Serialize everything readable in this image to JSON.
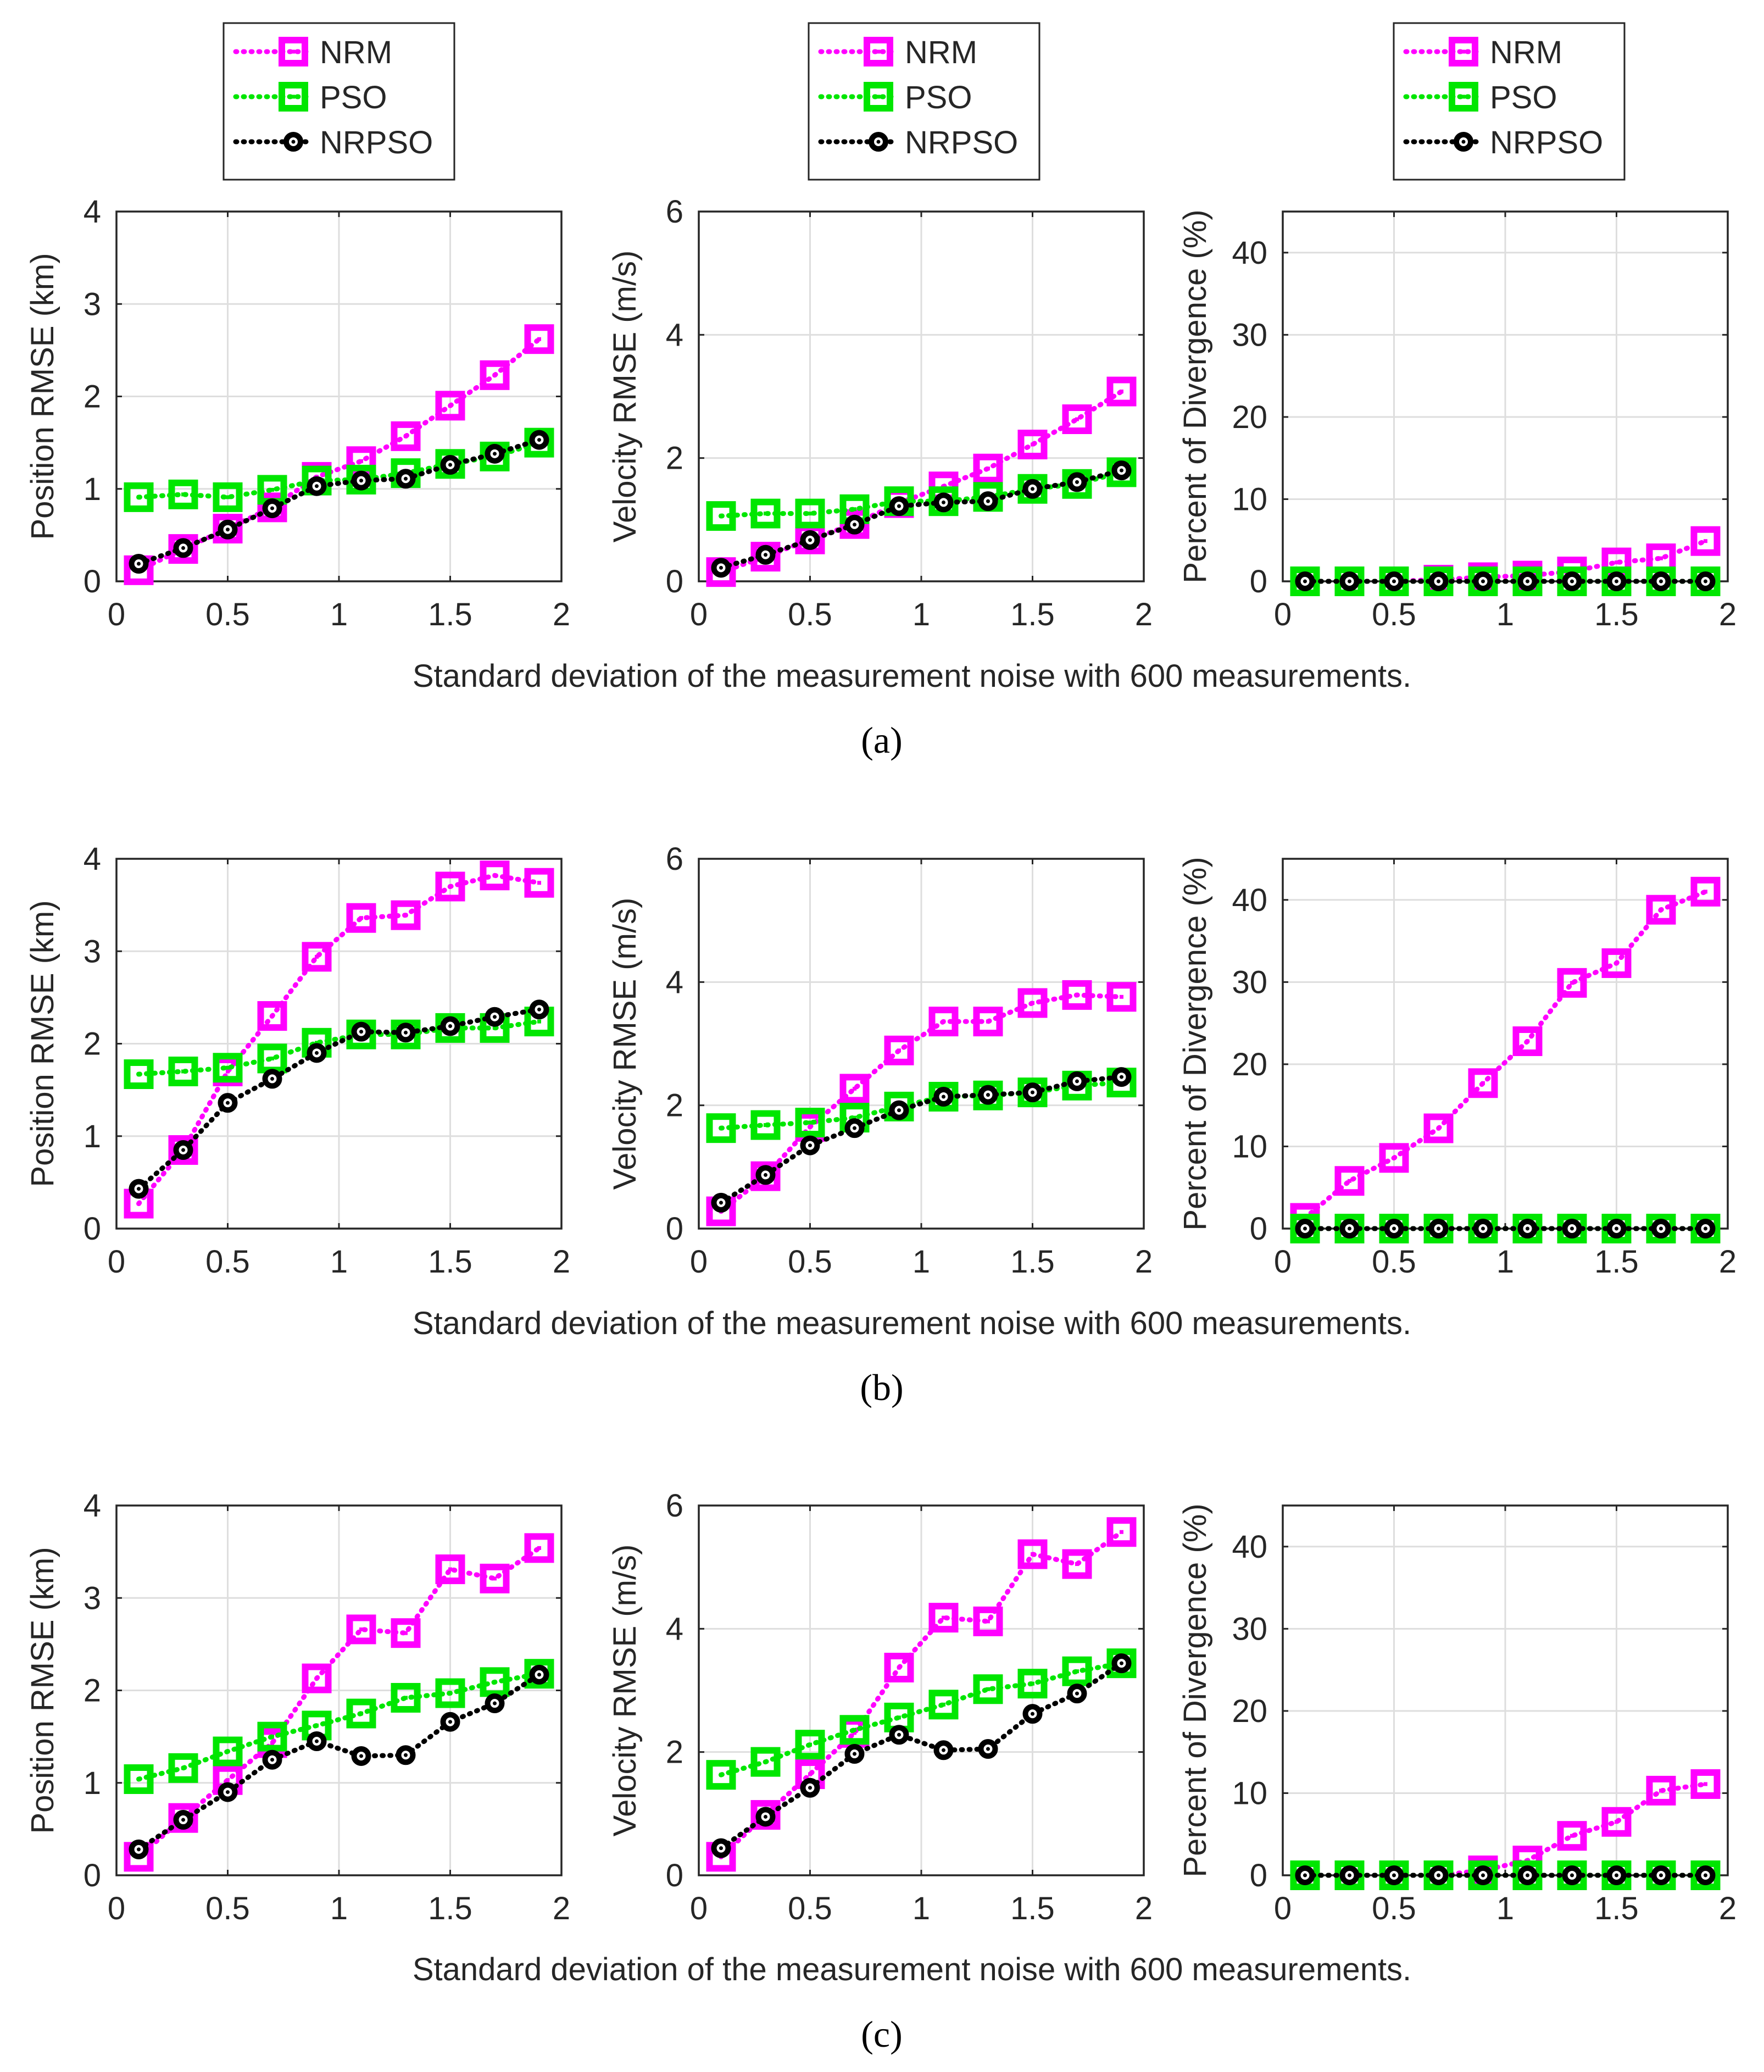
{
  "colors": {
    "NRM": "#ff00ff",
    "PSO": "#00e600",
    "NRPSO": "#000000",
    "grid": "#dedede",
    "axis": "#262626"
  },
  "legend": [
    "NRM",
    "PSO",
    "NRPSO"
  ],
  "chart_data": [
    {
      "type": "line",
      "row": "a",
      "caption": "(a)",
      "xlabel": "Standard deviation of the measurement noise with 600 measurements.",
      "x": [
        0.1,
        0.3,
        0.5,
        0.7,
        0.9,
        1.1,
        1.3,
        1.5,
        1.7,
        1.9
      ],
      "panels": [
        {
          "ylabel": "Position RMSE (km)",
          "xlim": [
            0,
            2
          ],
          "ylim": [
            0,
            4
          ],
          "xticks": [
            0,
            0.5,
            1,
            1.5,
            2
          ],
          "xtick_labels": [
            "0",
            "0.5",
            "1",
            "1.5",
            "2"
          ],
          "yticks": [
            0,
            1,
            2,
            3,
            4
          ],
          "ytick_labels": [
            "0",
            "1",
            "2",
            "3",
            "4"
          ],
          "series": [
            {
              "name": "NRM",
              "values": [
                0.12,
                0.35,
                0.57,
                0.8,
                1.13,
                1.3,
                1.57,
                1.9,
                2.23,
                2.62
              ]
            },
            {
              "name": "PSO",
              "values": [
                0.91,
                0.94,
                0.91,
                0.99,
                1.09,
                1.1,
                1.17,
                1.27,
                1.35,
                1.5
              ]
            },
            {
              "name": "NRPSO",
              "values": [
                0.19,
                0.36,
                0.56,
                0.79,
                1.03,
                1.09,
                1.11,
                1.26,
                1.38,
                1.53
              ]
            }
          ]
        },
        {
          "ylabel": "Velocity RMSE (m/s)",
          "xlim": [
            0,
            2
          ],
          "ylim": [
            0,
            6
          ],
          "xticks": [
            0,
            0.5,
            1,
            1.5,
            2
          ],
          "xtick_labels": [
            "0",
            "0.5",
            "1",
            "1.5",
            "2"
          ],
          "yticks": [
            0,
            2,
            4,
            6
          ],
          "ytick_labels": [
            "0",
            "2",
            "4",
            "6"
          ],
          "series": [
            {
              "name": "NRM",
              "values": [
                0.15,
                0.4,
                0.68,
                0.93,
                1.27,
                1.54,
                1.83,
                2.22,
                2.63,
                3.08
              ]
            },
            {
              "name": "PSO",
              "values": [
                1.06,
                1.1,
                1.1,
                1.17,
                1.3,
                1.3,
                1.37,
                1.5,
                1.58,
                1.77
              ]
            },
            {
              "name": "NRPSO",
              "values": [
                0.22,
                0.43,
                0.67,
                0.92,
                1.22,
                1.28,
                1.3,
                1.5,
                1.61,
                1.8
              ]
            }
          ]
        },
        {
          "ylabel": "Percent of Divergence (%)",
          "xlim": [
            0,
            2
          ],
          "ylim": [
            0,
            45
          ],
          "xticks": [
            0,
            0.5,
            1,
            1.5,
            2
          ],
          "xtick_labels": [
            "0",
            "0.5",
            "1",
            "1.5",
            "2"
          ],
          "yticks": [
            0,
            10,
            20,
            30,
            40
          ],
          "ytick_labels": [
            "0",
            "10",
            "20",
            "30",
            "40"
          ],
          "series": [
            {
              "name": "NRM",
              "values": [
                0,
                0,
                0,
                0.2,
                0.5,
                0.7,
                1.2,
                2.3,
                2.8,
                4.9
              ]
            },
            {
              "name": "PSO",
              "values": [
                0,
                0,
                0,
                0,
                0,
                0,
                0,
                0,
                0,
                0
              ]
            },
            {
              "name": "NRPSO",
              "values": [
                0,
                0,
                0,
                0,
                0,
                0,
                0,
                0,
                0,
                0
              ]
            }
          ]
        }
      ]
    },
    {
      "type": "line",
      "row": "b",
      "caption": "(b)",
      "xlabel": "Standard deviation of the measurement noise with 600 measurements.",
      "x": [
        0.1,
        0.3,
        0.5,
        0.7,
        0.9,
        1.1,
        1.3,
        1.5,
        1.7,
        1.9
      ],
      "panels": [
        {
          "ylabel": "Position RMSE (km)",
          "xlim": [
            0,
            2
          ],
          "ylim": [
            0,
            4
          ],
          "xticks": [
            0,
            0.5,
            1,
            1.5,
            2
          ],
          "xtick_labels": [
            "0",
            "0.5",
            "1",
            "1.5",
            "2"
          ],
          "yticks": [
            0,
            1,
            2,
            3,
            4
          ],
          "ytick_labels": [
            "0",
            "1",
            "2",
            "3",
            "4"
          ],
          "series": [
            {
              "name": "NRM",
              "values": [
                0.27,
                0.85,
                1.7,
                2.3,
                2.94,
                3.36,
                3.39,
                3.7,
                3.82,
                3.74
              ]
            },
            {
              "name": "PSO",
              "values": [
                1.67,
                1.7,
                1.74,
                1.84,
                2.01,
                2.1,
                2.1,
                2.17,
                2.17,
                2.24
              ]
            },
            {
              "name": "NRPSO",
              "values": [
                0.43,
                0.85,
                1.36,
                1.62,
                1.9,
                2.13,
                2.12,
                2.19,
                2.29,
                2.37
              ]
            }
          ]
        },
        {
          "ylabel": "Velocity RMSE (m/s)",
          "xlim": [
            0,
            2
          ],
          "ylim": [
            0,
            6
          ],
          "xticks": [
            0,
            0.5,
            1,
            1.5,
            2
          ],
          "xtick_labels": [
            "0",
            "0.5",
            "1",
            "1.5",
            "2"
          ],
          "yticks": [
            0,
            2,
            4,
            6
          ],
          "ytick_labels": [
            "0",
            "2",
            "4",
            "6"
          ],
          "series": [
            {
              "name": "NRM",
              "values": [
                0.28,
                0.85,
                1.65,
                2.27,
                2.89,
                3.36,
                3.36,
                3.66,
                3.79,
                3.76
              ]
            },
            {
              "name": "PSO",
              "values": [
                1.63,
                1.68,
                1.72,
                1.8,
                1.98,
                2.14,
                2.16,
                2.21,
                2.32,
                2.37
              ]
            },
            {
              "name": "NRPSO",
              "values": [
                0.42,
                0.87,
                1.35,
                1.63,
                1.92,
                2.14,
                2.17,
                2.21,
                2.39,
                2.46
              ]
            }
          ]
        },
        {
          "ylabel": "Percent of Divergence (%)",
          "xlim": [
            0,
            2
          ],
          "ylim": [
            0,
            45
          ],
          "xticks": [
            0,
            0.5,
            1,
            1.5,
            2
          ],
          "xtick_labels": [
            "0",
            "0.5",
            "1",
            "1.5",
            "2"
          ],
          "yticks": [
            0,
            10,
            20,
            30,
            40
          ],
          "ytick_labels": [
            "0",
            "10",
            "20",
            "30",
            "40"
          ],
          "series": [
            {
              "name": "NRM",
              "values": [
                1.3,
                5.8,
                8.6,
                12.2,
                17.7,
                22.8,
                29.9,
                32.3,
                38.8,
                41
              ]
            },
            {
              "name": "PSO",
              "values": [
                0,
                0,
                0,
                0,
                0,
                0,
                0,
                0,
                0,
                0
              ]
            },
            {
              "name": "NRPSO",
              "values": [
                0,
                0,
                0,
                0,
                0,
                0,
                0,
                0,
                0,
                0
              ]
            }
          ]
        }
      ]
    },
    {
      "type": "line",
      "row": "c",
      "caption": "(c)",
      "xlabel": "Standard deviation of the measurement noise with 600 measurements.",
      "x": [
        0.1,
        0.3,
        0.5,
        0.7,
        0.9,
        1.1,
        1.3,
        1.5,
        1.7,
        1.9
      ],
      "panels": [
        {
          "ylabel": "Position RMSE (km)",
          "xlim": [
            0,
            2
          ],
          "ylim": [
            0,
            4
          ],
          "xticks": [
            0,
            0.5,
            1,
            1.5,
            2
          ],
          "xtick_labels": [
            "0",
            "0.5",
            "1",
            "1.5",
            "2"
          ],
          "yticks": [
            0,
            1,
            2,
            3,
            4
          ],
          "ytick_labels": [
            "0",
            "1",
            "2",
            "3",
            "4"
          ],
          "series": [
            {
              "name": "NRM",
              "values": [
                0.2,
                0.62,
                1.03,
                1.43,
                2.13,
                2.66,
                2.62,
                3.31,
                3.21,
                3.54
              ]
            },
            {
              "name": "PSO",
              "values": [
                1.04,
                1.16,
                1.34,
                1.5,
                1.62,
                1.75,
                1.92,
                1.97,
                2.09,
                2.18
              ]
            },
            {
              "name": "NRPSO",
              "values": [
                0.28,
                0.6,
                0.9,
                1.25,
                1.45,
                1.29,
                1.3,
                1.66,
                1.86,
                2.17
              ]
            }
          ]
        },
        {
          "ylabel": "Velocity RMSE (m/s)",
          "xlim": [
            0,
            2
          ],
          "ylim": [
            0,
            6
          ],
          "xticks": [
            0,
            0.5,
            1,
            1.5,
            2
          ],
          "xtick_labels": [
            "0",
            "0.5",
            "1",
            "1.5",
            "2"
          ],
          "yticks": [
            0,
            2,
            4,
            6
          ],
          "ytick_labels": [
            "0",
            "2",
            "4",
            "6"
          ],
          "series": [
            {
              "name": "NRM",
              "values": [
                0.3,
                0.98,
                1.64,
                2.31,
                3.37,
                4.18,
                4.12,
                5.21,
                5.05,
                5.57
              ]
            },
            {
              "name": "PSO",
              "values": [
                1.63,
                1.84,
                2.12,
                2.36,
                2.56,
                2.77,
                3.02,
                3.11,
                3.31,
                3.44
              ]
            },
            {
              "name": "NRPSO",
              "values": [
                0.44,
                0.95,
                1.42,
                1.97,
                2.28,
                2.03,
                2.05,
                2.62,
                2.95,
                3.44
              ]
            }
          ]
        },
        {
          "ylabel": "Percent of Divergence (%)",
          "xlim": [
            0,
            2
          ],
          "ylim": [
            0,
            45
          ],
          "xticks": [
            0,
            0.5,
            1,
            1.5,
            2
          ],
          "xtick_labels": [
            "0",
            "0.5",
            "1",
            "1.5",
            "2"
          ],
          "yticks": [
            0,
            10,
            20,
            30,
            40
          ],
          "ytick_labels": [
            "0",
            "10",
            "20",
            "30",
            "40"
          ],
          "series": [
            {
              "name": "NRM",
              "values": [
                0,
                0,
                0,
                0,
                0.6,
                1.8,
                4.8,
                6.5,
                10.3,
                11.1
              ]
            },
            {
              "name": "PSO",
              "values": [
                0,
                0,
                0,
                0,
                0,
                0,
                0,
                0,
                0,
                0
              ]
            },
            {
              "name": "NRPSO",
              "values": [
                0,
                0,
                0,
                0,
                0,
                0,
                0,
                0,
                0,
                0
              ]
            }
          ]
        }
      ]
    }
  ]
}
